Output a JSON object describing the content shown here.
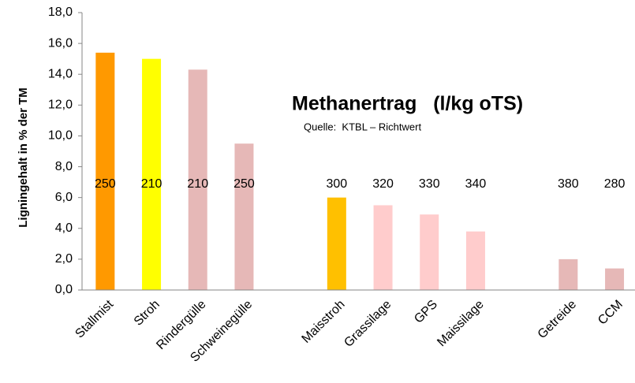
{
  "chart_data": {
    "type": "bar",
    "y_axis_label": "Ligningehalt in % der TM",
    "annotation_title": "Methanertrag   (l/kg oTS)",
    "annotation_source": "Quelle:  KTBL – Richtwert",
    "categories": [
      "Stallmist",
      "Stroh",
      "Rindergülle",
      "Schweinegülle",
      null,
      "Maisstroh",
      "Grassilage",
      "GPS",
      "Maissilage",
      null,
      "Getreide",
      "CCM"
    ],
    "values": [
      15.4,
      15.0,
      14.3,
      9.5,
      null,
      6.0,
      5.5,
      4.9,
      3.8,
      null,
      2.0,
      1.4
    ],
    "colors": [
      "#ff9900",
      "#ffff00",
      "#e6b8b7",
      "#e6b8b7",
      null,
      "#ffc000",
      "#ffcccc",
      "#ffcccc",
      "#ffcccc",
      null,
      "#e6b8b7",
      "#e6b8b7"
    ],
    "methane_labels": [
      250,
      210,
      210,
      250,
      null,
      300,
      320,
      330,
      340,
      null,
      380,
      280
    ],
    "ylim": [
      0,
      18
    ],
    "yticks": [
      {
        "value": 0,
        "label": "0,0"
      },
      {
        "value": 2,
        "label": "2,0"
      },
      {
        "value": 4,
        "label": "4,0"
      },
      {
        "value": 6,
        "label": "6,0"
      },
      {
        "value": 8,
        "label": "8,0"
      },
      {
        "value": 10,
        "label": "10,0"
      },
      {
        "value": 12,
        "label": "12,0"
      },
      {
        "value": 14,
        "label": "14,0"
      },
      {
        "value": 16,
        "label": "16,0"
      },
      {
        "value": 18,
        "label": "18,0"
      }
    ],
    "grid": false
  }
}
